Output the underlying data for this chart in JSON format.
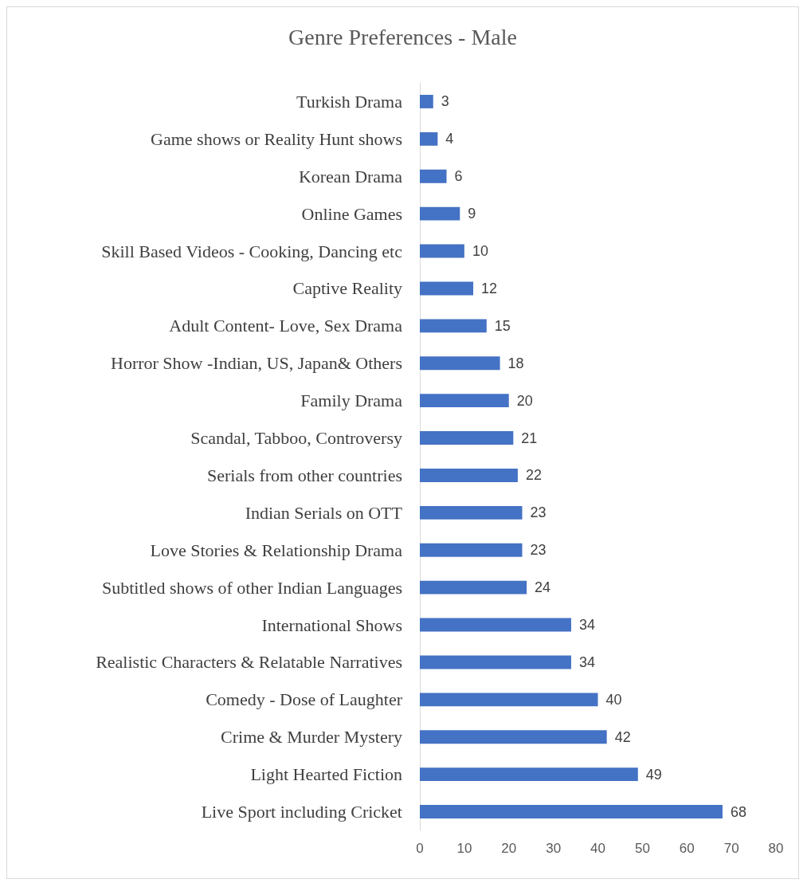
{
  "chart_data": {
    "type": "bar",
    "orientation": "horizontal",
    "title": "Genre Preferences - Male",
    "categories": [
      "Turkish Drama",
      "Game shows or Reality Hunt shows",
      "Korean Drama",
      "Online Games",
      "Skill Based Videos - Cooking, Dancing etc",
      "Captive Reality",
      "Adult Content- Love, Sex Drama",
      "Horror Show -Indian, US, Japan& Others",
      "Family Drama",
      "Scandal, Tabboo, Controversy",
      "Serials from other countries",
      "Indian Serials on OTT",
      "Love Stories & Relationship Drama",
      "Subtitled shows of other Indian Languages",
      "International Shows",
      "Realistic Characters & Relatable Narratives",
      "Comedy - Dose of Laughter",
      "Crime & Murder Mystery",
      "Light Hearted Fiction",
      "Live Sport including Cricket"
    ],
    "values": [
      3,
      4,
      6,
      9,
      10,
      12,
      15,
      18,
      20,
      21,
      22,
      23,
      23,
      24,
      34,
      34,
      40,
      42,
      49,
      68
    ],
    "color": "#4472c4",
    "xlim": [
      0,
      80
    ],
    "xticks": [
      0,
      10,
      20,
      30,
      40,
      50,
      60,
      70,
      80
    ],
    "grid": false,
    "data_labels": true
  }
}
